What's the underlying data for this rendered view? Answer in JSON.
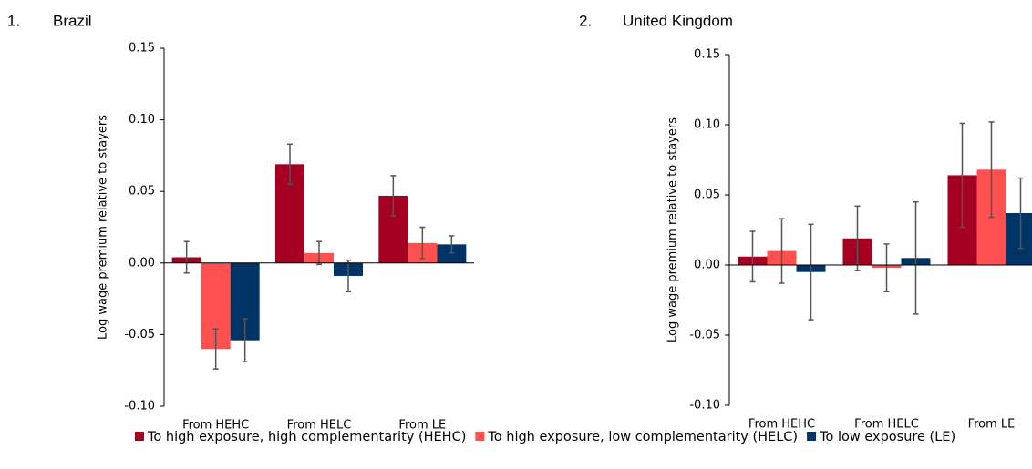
{
  "chart_data": [
    {
      "type": "bar",
      "number": "1.",
      "title": "Brazil",
      "ylabel": "Log wage premium relative to stayers",
      "categories": [
        "From HEHC",
        "From HELC",
        "From LE"
      ],
      "ylim": [
        -0.1,
        0.15
      ],
      "yticks": [
        {
          "value": -0.1,
          "label": "-0.10"
        },
        {
          "value": -0.05,
          "label": "-0.05"
        },
        {
          "value": 0,
          "label": "0.00"
        },
        {
          "value": 0.05,
          "label": "0.05"
        },
        {
          "value": 0.1,
          "label": "0.10"
        },
        {
          "value": 0.15,
          "label": "0.15"
        }
      ],
      "series": [
        {
          "name": "To high exposure, high complementarity (HEHC)",
          "color": "#a50021",
          "values": [
            0.004,
            0.069,
            0.047
          ],
          "errors": [
            0.011,
            0.014,
            0.014
          ]
        },
        {
          "name": "To high exposure, low complementarity (HELC)",
          "color": "#ff5050",
          "values": [
            -0.06,
            0.007,
            0.014
          ],
          "errors": [
            0.014,
            0.008,
            0.011
          ]
        },
        {
          "name": "To low exposure (LE)",
          "color": "#003366",
          "values": [
            -0.054,
            -0.009,
            0.013
          ],
          "errors": [
            0.015,
            0.011,
            0.006
          ]
        }
      ]
    },
    {
      "type": "bar",
      "number": "2.",
      "title": "United Kingdom",
      "ylabel": "Log wage premium relative to stayers",
      "categories": [
        "From HEHC",
        "From HELC",
        "From LE"
      ],
      "ylim": [
        -0.1,
        0.15
      ],
      "yticks": [
        {
          "value": -0.1,
          "label": "-0.10"
        },
        {
          "value": -0.05,
          "label": "-0.05"
        },
        {
          "value": 0,
          "label": "0.00"
        },
        {
          "value": 0.05,
          "label": "0.05"
        },
        {
          "value": 0.1,
          "label": "0.10"
        },
        {
          "value": 0.15,
          "label": "0.15"
        }
      ],
      "series": [
        {
          "color": "#a50021",
          "values": [
            0.006,
            0.019,
            0.064
          ],
          "errors": [
            0.018,
            0.023,
            0.037
          ]
        },
        {
          "color": "#ff5050",
          "values": [
            0.01,
            -0.002,
            0.068
          ],
          "errors": [
            0.023,
            0.017,
            0.034
          ]
        },
        {
          "color": "#003366",
          "values": [
            -0.005,
            0.005,
            0.037
          ],
          "errors": [
            0.034,
            0.04,
            0.025
          ]
        }
      ]
    }
  ]
}
